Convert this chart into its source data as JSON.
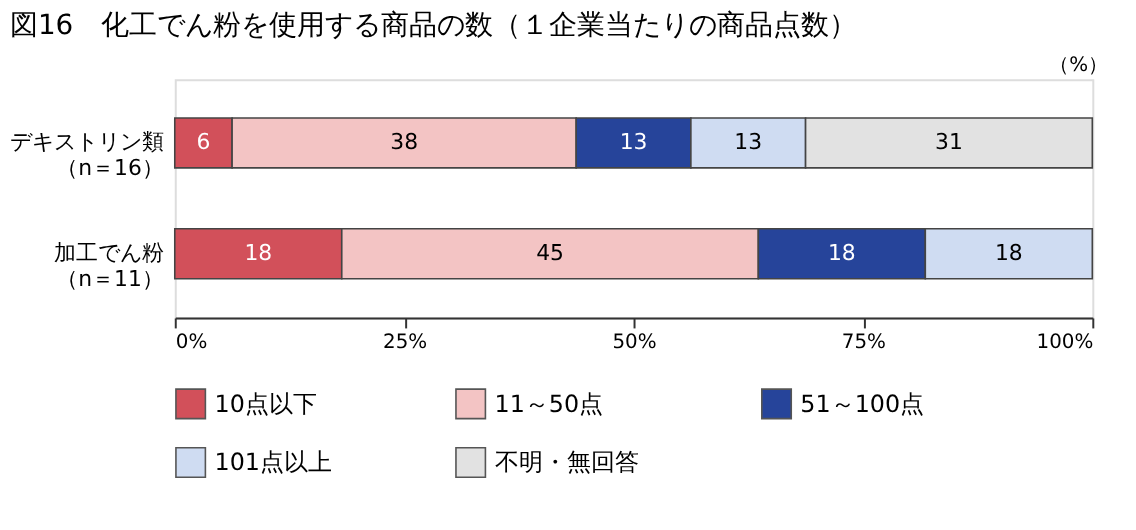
{
  "chart_data": {
    "type": "bar",
    "orientation": "horizontal",
    "stacked": true,
    "title": "図16　化工でん粉を使用する商品の数（１企業当たりの商品点数）",
    "xlabel": "（%）",
    "categories": [
      "デキストリン類（n＝16）",
      "加工でん粉（n＝11）"
    ],
    "series": [
      {
        "name": "10点以下",
        "color": "#d2505a",
        "values": [
          6.25,
          18.2
        ],
        "value_labels": [
          "6",
          "18"
        ]
      },
      {
        "name": "11～50点",
        "color": "#f3c4c4",
        "values": [
          37.5,
          45.4
        ],
        "value_labels": [
          "38",
          "45"
        ]
      },
      {
        "name": "51～100点",
        "color": "#26449a",
        "values": [
          12.5,
          18.2
        ],
        "value_labels": [
          "13",
          "18"
        ]
      },
      {
        "name": "101点以上",
        "color": "#cfdcf2",
        "values": [
          12.5,
          18.2
        ],
        "value_labels": [
          "13",
          "18"
        ]
      },
      {
        "name": "不明・無回答",
        "color": "#e2e2e2",
        "values": [
          31.25,
          null
        ],
        "value_labels": [
          "31",
          null
        ]
      }
    ],
    "xlim": [
      0,
      100
    ],
    "xticks": [
      {
        "value": 0,
        "label": "0%"
      },
      {
        "value": 25,
        "label": "25%"
      },
      {
        "value": 50,
        "label": "50%"
      },
      {
        "value": 75,
        "label": "75%"
      },
      {
        "value": 100,
        "label": "100%"
      }
    ],
    "grid": false,
    "legend": "bottom"
  }
}
